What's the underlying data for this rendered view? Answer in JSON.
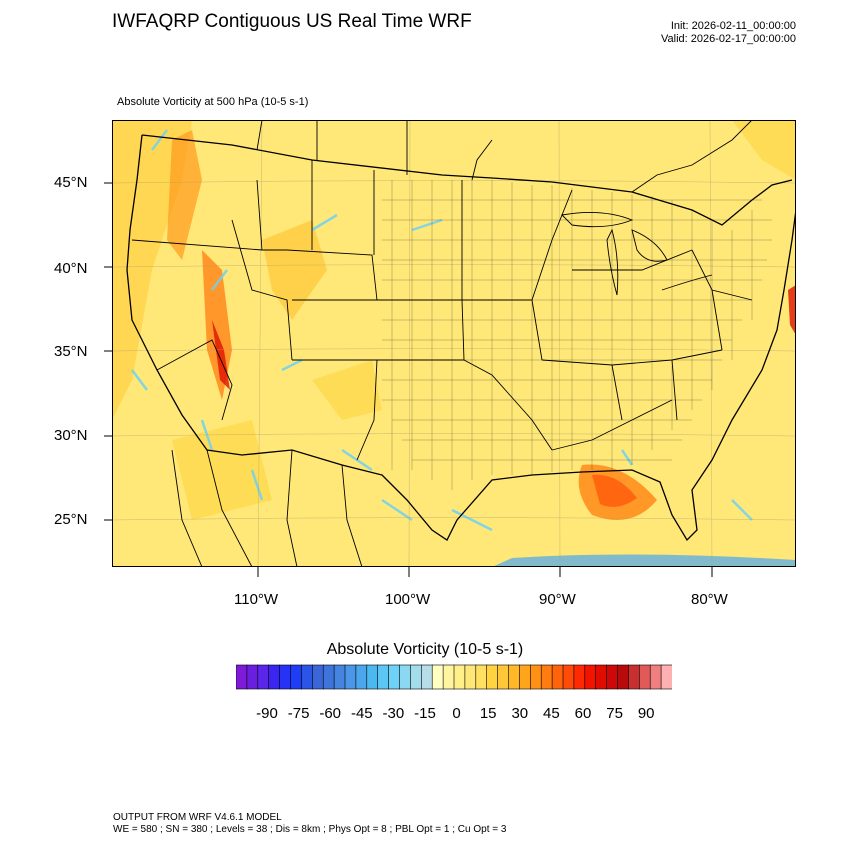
{
  "header": {
    "title": "IWFAQRP Contiguous US Real Time WRF",
    "init": "Init: 2026-02-11_00:00:00",
    "valid": "Valid: 2026-02-17_00:00:00"
  },
  "plot": {
    "field_label": "Absolute Vorticity at 500 hPa   (10-5 s-1)",
    "lat_labels": [
      "45°N",
      "40°N",
      "35°N",
      "30°N",
      "25°N"
    ],
    "lon_labels": [
      "110°W",
      "100°W",
      "90°W",
      "80°W"
    ]
  },
  "colorbar": {
    "title": "Absolute Vorticity  (10-5 s-1)",
    "labels": [
      "-90",
      "-75",
      "-60",
      "-45",
      "-30",
      "-15",
      "0",
      "15",
      "30",
      "45",
      "60",
      "75",
      "90"
    ],
    "colors": [
      "#7e1bd8",
      "#6a1fe0",
      "#5a26ea",
      "#3a26f0",
      "#2632f5",
      "#1f3cf7",
      "#2b55e6",
      "#3a66d8",
      "#3f74dc",
      "#4584e0",
      "#4a96e8",
      "#4ca6ec",
      "#4cb8f2",
      "#5cc6f5",
      "#6ed1f5",
      "#8ad8f2",
      "#a3dceb",
      "#b7dde9",
      "#ffffc4",
      "#fff4a0",
      "#fff08a",
      "#ffe878",
      "#ffe060",
      "#ffd440",
      "#ffc838",
      "#ffb926",
      "#ffa51c",
      "#ff9214",
      "#ff7c10",
      "#ff640c",
      "#ff4a08",
      "#ff2a04",
      "#f21400",
      "#e00c00",
      "#cc0808",
      "#b80a0a",
      "#c83030",
      "#e05a5a",
      "#f08080",
      "#ffb0b0"
    ]
  },
  "footer": {
    "line1": "OUTPUT FROM WRF V4.6.1 MODEL",
    "line2": "WE = 580 ; SN = 380 ; Levels = 38 ; Dis = 8km ; Phys Opt = 8 ; PBL Opt = 1 ; Cu Opt = 3"
  }
}
